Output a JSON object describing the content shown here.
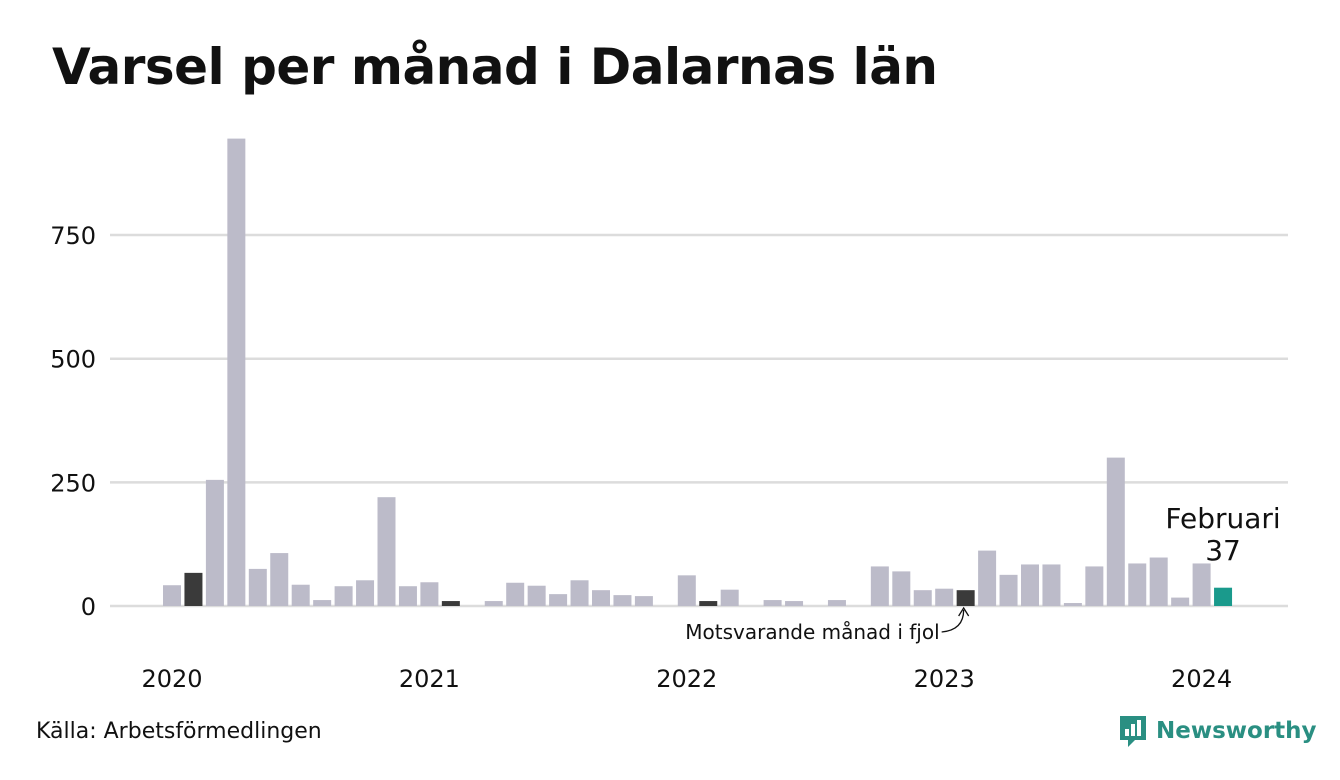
{
  "title": "Varsel per månad i Dalarnas län",
  "source": "Källa: Arbetsförmedlingen",
  "brand": "Newsworthy",
  "colors": {
    "bar": "#bcbbc9",
    "comparison": "#3a3a3a",
    "highlight": "#1a9a8c",
    "grid": "#dcdcdc",
    "brand": "#2a8f82"
  },
  "chart_data": {
    "type": "bar",
    "title": "Varsel per månad i Dalarnas län",
    "ylim": [
      0,
      950
    ],
    "yticks": [
      0,
      250,
      500,
      750
    ],
    "year_labels": [
      {
        "label": "2020",
        "index": 0
      },
      {
        "label": "2021",
        "index": 12
      },
      {
        "label": "2022",
        "index": 24
      },
      {
        "label": "2023",
        "index": 36
      },
      {
        "label": "2024",
        "index": 48
      }
    ],
    "months": [
      "2020-01",
      "2020-02",
      "2020-03",
      "2020-04",
      "2020-05",
      "2020-06",
      "2020-07",
      "2020-08",
      "2020-09",
      "2020-10",
      "2020-11",
      "2020-12",
      "2021-01",
      "2021-02",
      "2021-03",
      "2021-04",
      "2021-05",
      "2021-06",
      "2021-07",
      "2021-08",
      "2021-09",
      "2021-10",
      "2021-11",
      "2021-12",
      "2022-01",
      "2022-02",
      "2022-03",
      "2022-04",
      "2022-05",
      "2022-06",
      "2022-07",
      "2022-08",
      "2022-09",
      "2022-10",
      "2022-11",
      "2022-12",
      "2023-01",
      "2023-02",
      "2023-03",
      "2023-04",
      "2023-05",
      "2023-06",
      "2023-07",
      "2023-08",
      "2023-09",
      "2023-10",
      "2023-11",
      "2023-12",
      "2024-01",
      "2024-02"
    ],
    "values": [
      42,
      67,
      255,
      945,
      75,
      107,
      43,
      12,
      40,
      52,
      220,
      40,
      48,
      10,
      0,
      10,
      47,
      41,
      24,
      52,
      32,
      22,
      20,
      0,
      62,
      10,
      33,
      0,
      12,
      10,
      0,
      12,
      0,
      80,
      70,
      32,
      35,
      32,
      112,
      63,
      84,
      84,
      6,
      80,
      300,
      86,
      98,
      17,
      86,
      37
    ],
    "comparison_indices": [
      1,
      13,
      25,
      37
    ],
    "highlight_index": 49,
    "highlight_label": "Februari",
    "highlight_value_label": "37",
    "annotation": "Motsvarande månad i fjol",
    "grid": true
  }
}
